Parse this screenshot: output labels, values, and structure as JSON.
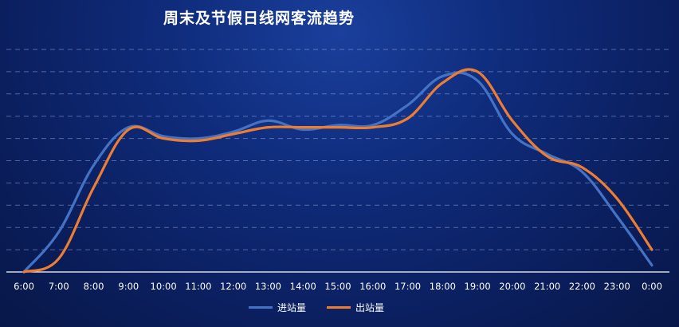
{
  "chart_data": {
    "type": "line",
    "title": "周末及节假日线网客流趋势",
    "categories": [
      "6:00",
      "7:00",
      "8:00",
      "9:00",
      "10:00",
      "11:00",
      "12:00",
      "13:00",
      "14:00",
      "15:00",
      "16:00",
      "17:00",
      "18:00",
      "19:00",
      "20:00",
      "21:00",
      "22:00",
      "23:00",
      "0:00"
    ],
    "series": [
      {
        "name": "进站量",
        "color": "#4472c4",
        "values": [
          0,
          18,
          48,
          65,
          61,
          60,
          63,
          68,
          64,
          66,
          66,
          75,
          88,
          86,
          62,
          53,
          45,
          25,
          3
        ]
      },
      {
        "name": "出站量",
        "color": "#ed7d31",
        "values": [
          0,
          6,
          38,
          64,
          60,
          59,
          62,
          65,
          65,
          65,
          65,
          69,
          85,
          90,
          68,
          52,
          47,
          33,
          10
        ]
      }
    ],
    "ylim": [
      0,
      100
    ],
    "grid": true,
    "legend": "bottom"
  }
}
